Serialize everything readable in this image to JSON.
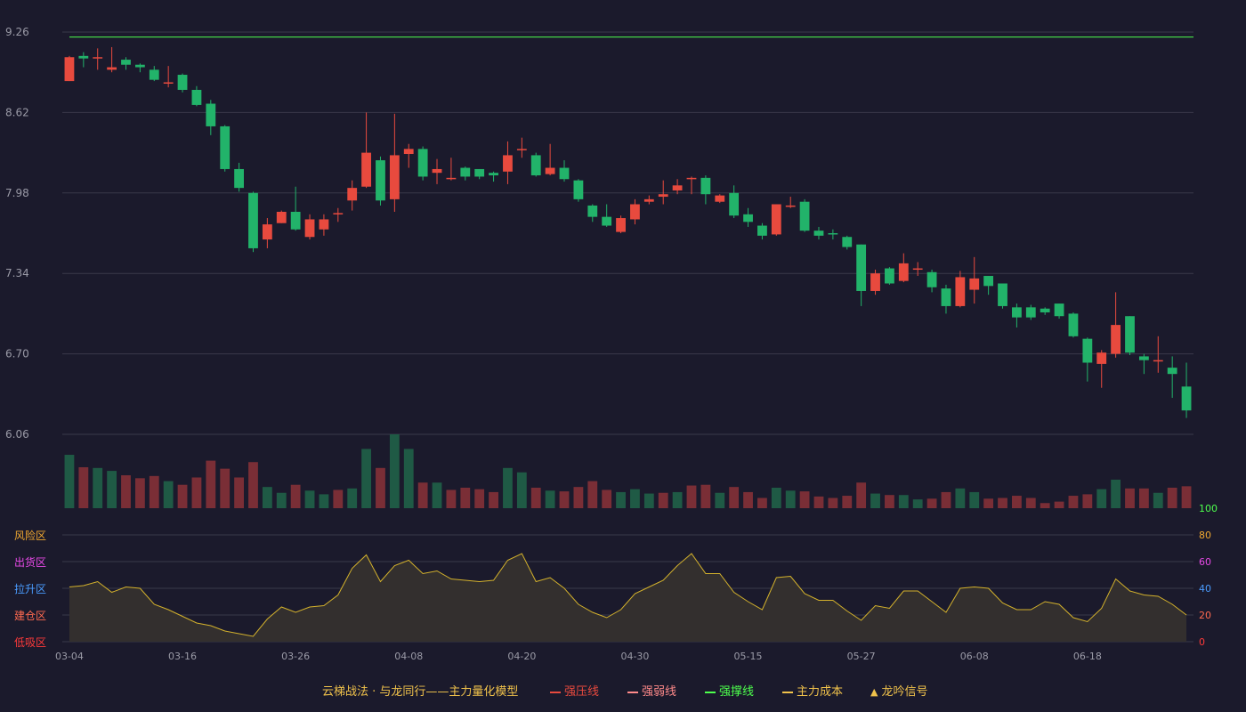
{
  "legend": {
    "title": "云梯战法 · 与龙同行——主力量化模型",
    "items": [
      {
        "label": "强压线",
        "color": "#e84a3e",
        "style": "solid"
      },
      {
        "label": "强弱线",
        "color": "#ff8a8a",
        "style": "dash"
      },
      {
        "label": "强撑线",
        "color": "#4dff4d",
        "style": "solid"
      },
      {
        "label": "主力成本",
        "color": "#f0c24b",
        "style": "dash"
      },
      {
        "label": "龙吟信号",
        "color": "#f0c24b",
        "style": "triangle"
      }
    ]
  },
  "colors": {
    "up": "#e84a3e",
    "down": "#22b36a",
    "up_vol": "#7a2e36",
    "down_vol": "#1f5a45",
    "grid": "#3a394a",
    "axis_text": "#9a9aa6",
    "support_line": "#4dff4d",
    "indicator_line": "#d4b22c",
    "indicator_fill": "#332f2e"
  },
  "chart_data": [
    {
      "type": "candlestick",
      "y_ticks": [
        "9.26",
        "8.62",
        "7.98",
        "7.34",
        "6.70",
        "6.06"
      ],
      "ylim": [
        6.06,
        9.26
      ],
      "x_ticks": [
        "03-04",
        "03-16",
        "03-26",
        "04-08",
        "04-20",
        "04-30",
        "05-15",
        "05-27",
        "06-08",
        "06-18"
      ],
      "x_tick_index": [
        0,
        8,
        16,
        24,
        32,
        40,
        48,
        56,
        64,
        72
      ],
      "support_level": 9.22,
      "candles": [
        {
          "o": 8.87,
          "c": 9.06,
          "h": 9.07,
          "l": 8.87
        },
        {
          "o": 9.07,
          "c": 9.05,
          "h": 9.1,
          "l": 8.98
        },
        {
          "o": 9.05,
          "c": 9.06,
          "h": 9.13,
          "l": 8.96
        },
        {
          "o": 8.96,
          "c": 8.98,
          "h": 9.14,
          "l": 8.94
        },
        {
          "o": 9.04,
          "c": 9.0,
          "h": 9.06,
          "l": 8.96
        },
        {
          "o": 9.0,
          "c": 8.98,
          "h": 9.01,
          "l": 8.94
        },
        {
          "o": 8.96,
          "c": 8.88,
          "h": 8.99,
          "l": 8.87
        },
        {
          "o": 8.86,
          "c": 8.86,
          "h": 8.99,
          "l": 8.82
        },
        {
          "o": 8.92,
          "c": 8.8,
          "h": 8.93,
          "l": 8.78
        },
        {
          "o": 8.8,
          "c": 8.68,
          "h": 8.83,
          "l": 8.67
        },
        {
          "o": 8.69,
          "c": 8.51,
          "h": 8.72,
          "l": 8.44
        },
        {
          "o": 8.51,
          "c": 8.17,
          "h": 8.52,
          "l": 8.15
        },
        {
          "o": 8.17,
          "c": 8.02,
          "h": 8.22,
          "l": 7.99
        },
        {
          "o": 7.98,
          "c": 7.54,
          "h": 7.99,
          "l": 7.51
        },
        {
          "o": 7.61,
          "c": 7.73,
          "h": 7.78,
          "l": 7.54
        },
        {
          "o": 7.74,
          "c": 7.83,
          "h": 7.84,
          "l": 7.74
        },
        {
          "o": 7.83,
          "c": 7.69,
          "h": 8.03,
          "l": 7.68
        },
        {
          "o": 7.63,
          "c": 7.77,
          "h": 7.81,
          "l": 7.61
        },
        {
          "o": 7.69,
          "c": 7.77,
          "h": 7.81,
          "l": 7.64
        },
        {
          "o": 7.82,
          "c": 7.82,
          "h": 7.86,
          "l": 7.75
        },
        {
          "o": 7.92,
          "c": 8.02,
          "h": 8.08,
          "l": 7.84
        },
        {
          "o": 8.03,
          "c": 8.3,
          "h": 8.62,
          "l": 8.02
        },
        {
          "o": 8.24,
          "c": 7.92,
          "h": 8.27,
          "l": 7.88
        },
        {
          "o": 7.93,
          "c": 8.28,
          "h": 8.61,
          "l": 7.83
        },
        {
          "o": 8.29,
          "c": 8.33,
          "h": 8.37,
          "l": 8.18
        },
        {
          "o": 8.33,
          "c": 8.11,
          "h": 8.35,
          "l": 8.08
        },
        {
          "o": 8.14,
          "c": 8.17,
          "h": 8.25,
          "l": 8.05
        },
        {
          "o": 8.1,
          "c": 8.1,
          "h": 8.26,
          "l": 8.08
        },
        {
          "o": 8.18,
          "c": 8.11,
          "h": 8.19,
          "l": 8.08
        },
        {
          "o": 8.17,
          "c": 8.11,
          "h": 8.17,
          "l": 8.09
        },
        {
          "o": 8.14,
          "c": 8.12,
          "h": 8.15,
          "l": 8.07
        },
        {
          "o": 8.15,
          "c": 8.28,
          "h": 8.39,
          "l": 8.05
        },
        {
          "o": 8.32,
          "c": 8.33,
          "h": 8.42,
          "l": 8.26
        },
        {
          "o": 8.28,
          "c": 8.12,
          "h": 8.3,
          "l": 8.11
        },
        {
          "o": 8.13,
          "c": 8.18,
          "h": 8.37,
          "l": 8.12
        },
        {
          "o": 8.18,
          "c": 8.09,
          "h": 8.24,
          "l": 8.07
        },
        {
          "o": 8.08,
          "c": 7.93,
          "h": 8.09,
          "l": 7.91
        },
        {
          "o": 7.88,
          "c": 7.79,
          "h": 7.89,
          "l": 7.75
        },
        {
          "o": 7.79,
          "c": 7.72,
          "h": 7.89,
          "l": 7.71
        },
        {
          "o": 7.67,
          "c": 7.78,
          "h": 7.8,
          "l": 7.66
        },
        {
          "o": 7.77,
          "c": 7.89,
          "h": 7.93,
          "l": 7.73
        },
        {
          "o": 7.91,
          "c": 7.93,
          "h": 7.96,
          "l": 7.89
        },
        {
          "o": 7.95,
          "c": 7.97,
          "h": 8.08,
          "l": 7.89
        },
        {
          "o": 8.0,
          "c": 8.04,
          "h": 8.09,
          "l": 7.97
        },
        {
          "o": 8.1,
          "c": 8.1,
          "h": 8.11,
          "l": 7.97
        },
        {
          "o": 8.1,
          "c": 7.97,
          "h": 8.12,
          "l": 7.89
        },
        {
          "o": 7.91,
          "c": 7.96,
          "h": 7.97,
          "l": 7.9
        },
        {
          "o": 7.98,
          "c": 7.8,
          "h": 8.04,
          "l": 7.78
        },
        {
          "o": 7.81,
          "c": 7.75,
          "h": 7.86,
          "l": 7.71
        },
        {
          "o": 7.72,
          "c": 7.64,
          "h": 7.74,
          "l": 7.61
        },
        {
          "o": 7.65,
          "c": 7.89,
          "h": 7.89,
          "l": 7.64
        },
        {
          "o": 7.87,
          "c": 7.88,
          "h": 7.95,
          "l": 7.86
        },
        {
          "o": 7.91,
          "c": 7.68,
          "h": 7.93,
          "l": 7.67
        },
        {
          "o": 7.68,
          "c": 7.64,
          "h": 7.71,
          "l": 7.61
        },
        {
          "o": 7.66,
          "c": 7.65,
          "h": 7.69,
          "l": 7.61
        },
        {
          "o": 7.63,
          "c": 7.55,
          "h": 7.64,
          "l": 7.53
        },
        {
          "o": 7.57,
          "c": 7.2,
          "h": 7.57,
          "l": 7.08
        },
        {
          "o": 7.2,
          "c": 7.34,
          "h": 7.37,
          "l": 7.17
        },
        {
          "o": 7.38,
          "c": 7.26,
          "h": 7.39,
          "l": 7.25
        },
        {
          "o": 7.28,
          "c": 7.42,
          "h": 7.5,
          "l": 7.27
        },
        {
          "o": 7.37,
          "c": 7.38,
          "h": 7.43,
          "l": 7.32
        },
        {
          "o": 7.35,
          "c": 7.23,
          "h": 7.37,
          "l": 7.19
        },
        {
          "o": 7.22,
          "c": 7.08,
          "h": 7.25,
          "l": 7.02
        },
        {
          "o": 7.08,
          "c": 7.31,
          "h": 7.36,
          "l": 7.07
        },
        {
          "o": 7.21,
          "c": 7.3,
          "h": 7.47,
          "l": 7.1
        },
        {
          "o": 7.32,
          "c": 7.24,
          "h": 7.32,
          "l": 7.17
        },
        {
          "o": 7.26,
          "c": 7.08,
          "h": 7.26,
          "l": 7.06
        },
        {
          "o": 7.07,
          "c": 6.99,
          "h": 7.1,
          "l": 6.91
        },
        {
          "o": 7.07,
          "c": 6.99,
          "h": 7.09,
          "l": 6.97
        },
        {
          "o": 7.06,
          "c": 7.03,
          "h": 7.07,
          "l": 7.01
        },
        {
          "o": 7.1,
          "c": 7.0,
          "h": 7.1,
          "l": 6.98
        },
        {
          "o": 7.02,
          "c": 6.84,
          "h": 7.03,
          "l": 6.83
        },
        {
          "o": 6.82,
          "c": 6.63,
          "h": 6.83,
          "l": 6.48
        },
        {
          "o": 6.62,
          "c": 6.71,
          "h": 6.73,
          "l": 6.43
        },
        {
          "o": 6.7,
          "c": 6.93,
          "h": 7.19,
          "l": 6.67
        },
        {
          "o": 7.0,
          "c": 6.71,
          "h": 7.0,
          "l": 6.69
        },
        {
          "o": 6.68,
          "c": 6.65,
          "h": 6.7,
          "l": 6.54
        },
        {
          "o": 6.65,
          "c": 6.65,
          "h": 6.84,
          "l": 6.55
        },
        {
          "o": 6.59,
          "c": 6.54,
          "h": 6.68,
          "l": 6.35
        },
        {
          "o": 6.44,
          "c": 6.25,
          "h": 6.63,
          "l": 6.19
        }
      ],
      "volume": [
        {
          "v": 73,
          "d": "down"
        },
        {
          "v": 56,
          "d": "up"
        },
        {
          "v": 55,
          "d": "down"
        },
        {
          "v": 51,
          "d": "down"
        },
        {
          "v": 45,
          "d": "up"
        },
        {
          "v": 41,
          "d": "up"
        },
        {
          "v": 44,
          "d": "up"
        },
        {
          "v": 37,
          "d": "down"
        },
        {
          "v": 32,
          "d": "up"
        },
        {
          "v": 42,
          "d": "up"
        },
        {
          "v": 65,
          "d": "up"
        },
        {
          "v": 54,
          "d": "up"
        },
        {
          "v": 42,
          "d": "up"
        },
        {
          "v": 63,
          "d": "up"
        },
        {
          "v": 29,
          "d": "down"
        },
        {
          "v": 21,
          "d": "down"
        },
        {
          "v": 32,
          "d": "up"
        },
        {
          "v": 24,
          "d": "down"
        },
        {
          "v": 19,
          "d": "down"
        },
        {
          "v": 25,
          "d": "up"
        },
        {
          "v": 27,
          "d": "down"
        },
        {
          "v": 81,
          "d": "down"
        },
        {
          "v": 55,
          "d": "up"
        },
        {
          "v": 101,
          "d": "down"
        },
        {
          "v": 81,
          "d": "down"
        },
        {
          "v": 35,
          "d": "up"
        },
        {
          "v": 35,
          "d": "down"
        },
        {
          "v": 25,
          "d": "up"
        },
        {
          "v": 28,
          "d": "up"
        },
        {
          "v": 26,
          "d": "up"
        },
        {
          "v": 22,
          "d": "up"
        },
        {
          "v": 55,
          "d": "down"
        },
        {
          "v": 49,
          "d": "down"
        },
        {
          "v": 28,
          "d": "up"
        },
        {
          "v": 24,
          "d": "down"
        },
        {
          "v": 23,
          "d": "up"
        },
        {
          "v": 29,
          "d": "up"
        },
        {
          "v": 37,
          "d": "up"
        },
        {
          "v": 25,
          "d": "up"
        },
        {
          "v": 22,
          "d": "down"
        },
        {
          "v": 26,
          "d": "down"
        },
        {
          "v": 20,
          "d": "down"
        },
        {
          "v": 21,
          "d": "up"
        },
        {
          "v": 22,
          "d": "down"
        },
        {
          "v": 31,
          "d": "up"
        },
        {
          "v": 32,
          "d": "up"
        },
        {
          "v": 21,
          "d": "down"
        },
        {
          "v": 29,
          "d": "up"
        },
        {
          "v": 22,
          "d": "up"
        },
        {
          "v": 14,
          "d": "up"
        },
        {
          "v": 28,
          "d": "down"
        },
        {
          "v": 24,
          "d": "down"
        },
        {
          "v": 23,
          "d": "up"
        },
        {
          "v": 16,
          "d": "up"
        },
        {
          "v": 14,
          "d": "up"
        },
        {
          "v": 17,
          "d": "up"
        },
        {
          "v": 35,
          "d": "up"
        },
        {
          "v": 20,
          "d": "down"
        },
        {
          "v": 18,
          "d": "up"
        },
        {
          "v": 18,
          "d": "down"
        },
        {
          "v": 12,
          "d": "down"
        },
        {
          "v": 13,
          "d": "up"
        },
        {
          "v": 22,
          "d": "up"
        },
        {
          "v": 27,
          "d": "down"
        },
        {
          "v": 22,
          "d": "down"
        },
        {
          "v": 13,
          "d": "up"
        },
        {
          "v": 14,
          "d": "up"
        },
        {
          "v": 17,
          "d": "up"
        },
        {
          "v": 14,
          "d": "up"
        },
        {
          "v": 7,
          "d": "up"
        },
        {
          "v": 9,
          "d": "up"
        },
        {
          "v": 17,
          "d": "up"
        },
        {
          "v": 19,
          "d": "up"
        },
        {
          "v": 26,
          "d": "down"
        },
        {
          "v": 39,
          "d": "down"
        },
        {
          "v": 27,
          "d": "up"
        },
        {
          "v": 27,
          "d": "up"
        },
        {
          "v": 21,
          "d": "down"
        },
        {
          "v": 28,
          "d": "up"
        },
        {
          "v": 30,
          "d": "up"
        }
      ]
    },
    {
      "type": "area",
      "y_ticks": [
        "100",
        "80",
        "60",
        "40",
        "20",
        "0"
      ],
      "y_tick_colors": [
        "#4dff4d",
        "#f0a830",
        "#e84ae8",
        "#4a9cff",
        "#ff6a50",
        "#ff3a3a"
      ],
      "ylim": [
        0,
        100
      ],
      "zone_labels": [
        "风险区",
        "出货区",
        "拉升区",
        "建仓区",
        "低吸区"
      ],
      "zone_colors": [
        "#f0a830",
        "#e84ae8",
        "#4a9cff",
        "#ff6a50",
        "#ff3a3a"
      ],
      "values": [
        41,
        42,
        45,
        37,
        41,
        40,
        28,
        24,
        19,
        14,
        12,
        8,
        6,
        4,
        17,
        26,
        22,
        26,
        27,
        35,
        55,
        65,
        45,
        57,
        61,
        51,
        53,
        47,
        46,
        45,
        46,
        61,
        66,
        45,
        48,
        40,
        28,
        22,
        18,
        24,
        36,
        41,
        46,
        57,
        66,
        51,
        51,
        37,
        30,
        24,
        48,
        49,
        36,
        31,
        31,
        23,
        16,
        27,
        25,
        38,
        38,
        30,
        22,
        40,
        41,
        40,
        29,
        24,
        24,
        30,
        28,
        18,
        15,
        25,
        47,
        38,
        35,
        34,
        28,
        20
      ]
    }
  ]
}
